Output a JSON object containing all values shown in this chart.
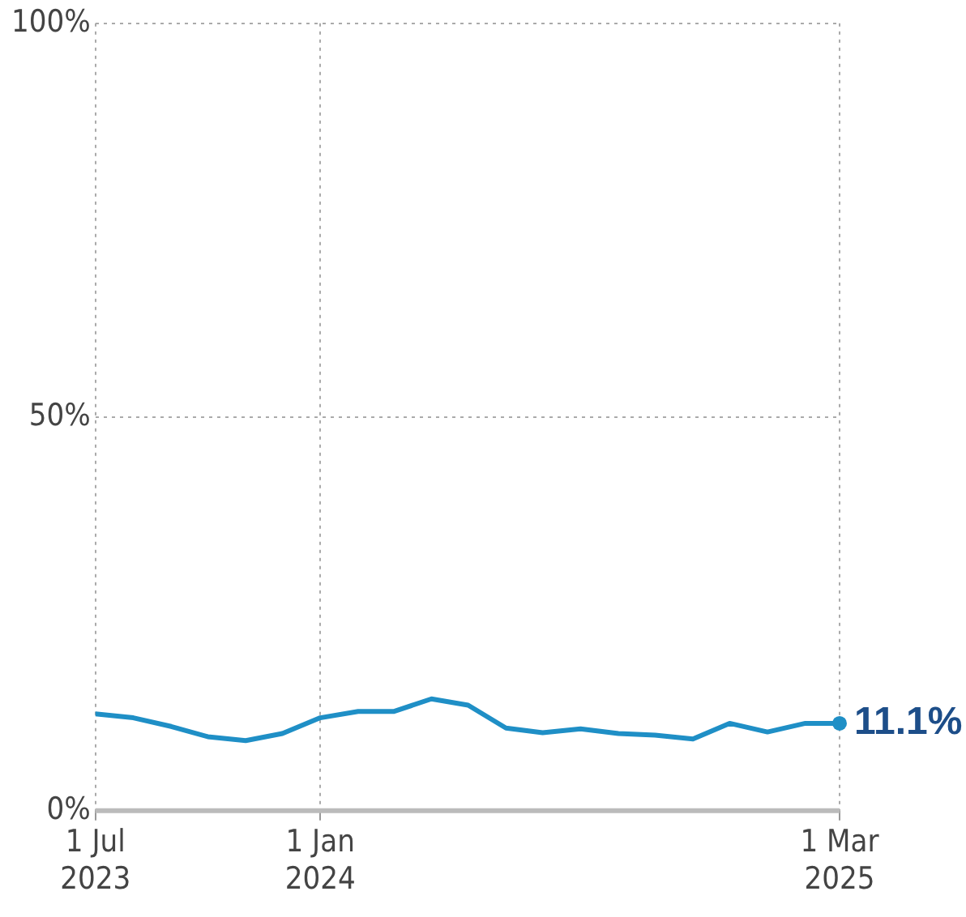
{
  "chart_data": {
    "type": "line",
    "x": [
      "2023-07-01",
      "2023-08-01",
      "2023-09-01",
      "2023-10-01",
      "2023-11-01",
      "2023-12-01",
      "2024-01-01",
      "2024-02-01",
      "2024-03-01",
      "2024-04-01",
      "2024-05-01",
      "2024-06-01",
      "2024-07-01",
      "2024-08-01",
      "2024-09-01",
      "2024-10-01",
      "2024-11-01",
      "2024-12-01",
      "2025-01-01",
      "2025-02-01",
      "2025-03-01"
    ],
    "series": [
      {
        "color": "#1f8fc6",
        "values": [
          12.3,
          11.8,
          10.7,
          9.4,
          8.9,
          9.8,
          11.8,
          12.6,
          12.6,
          14.2,
          13.4,
          10.5,
          9.9,
          10.4,
          9.8,
          9.6,
          9.1,
          11.1,
          10.0,
          11.1,
          11.1
        ]
      }
    ],
    "xlim": [
      "2023-07-01",
      "2025-03-01"
    ],
    "xticks": [
      {
        "value": "2023-07-01",
        "label": "1 Jul 2023"
      },
      {
        "value": "2024-01-01",
        "label": "1 Jan 2024"
      },
      {
        "value": "2025-03-01",
        "label": "1 Mar 2025"
      }
    ],
    "ylim": [
      0,
      100
    ],
    "yticks": [
      {
        "value": 0,
        "label": "0%"
      },
      {
        "value": 50,
        "label": "50%"
      },
      {
        "value": 100,
        "label": "100%"
      }
    ],
    "grid": true,
    "line_style": "solid",
    "marker": "none",
    "legend": false,
    "annotations": [
      {
        "text": "11.1%",
        "x": "2025-03-01",
        "y": 11.1
      }
    ]
  }
}
